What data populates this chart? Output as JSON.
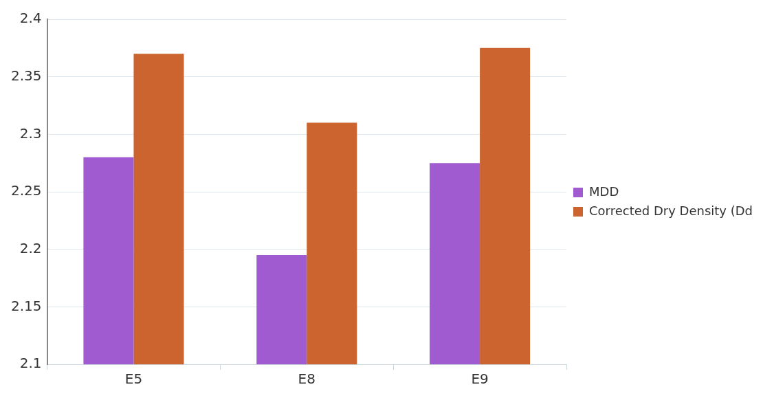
{
  "chart_data": {
    "type": "bar",
    "categories": [
      "E5",
      "E8",
      "E9"
    ],
    "series": [
      {
        "name": "MDD",
        "color": "#a05bd0",
        "values": [
          2.28,
          2.195,
          2.275
        ]
      },
      {
        "name": "Corrected Dry Density (Dd",
        "color": "#cc6430",
        "values": [
          2.37,
          2.31,
          2.375
        ]
      }
    ],
    "ylim": [
      2.1,
      2.4
    ],
    "yticks": [
      2.1,
      2.15,
      2.2,
      2.25,
      2.3,
      2.35,
      2.4
    ],
    "grid": "y",
    "legend": "right"
  }
}
